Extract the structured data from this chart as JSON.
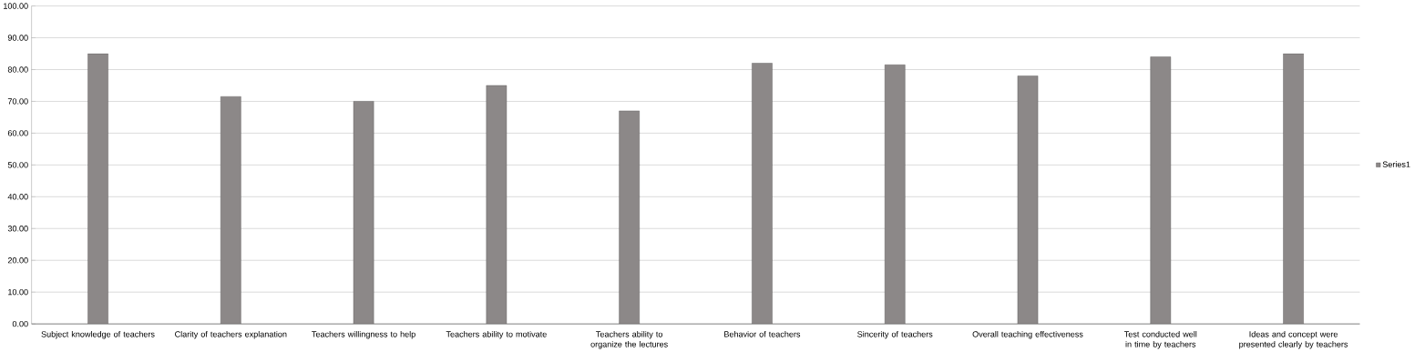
{
  "chart_data": {
    "type": "bar",
    "categories": [
      "Subject knowledge of teachers",
      "Clarity of teachers explanation",
      "Teachers willingness to help",
      "Teachers ability to motivate",
      "Teachers ability to organize the lectures",
      "Behavior of teachers",
      "Sincerity of teachers",
      "Overall teaching effectiveness",
      "Test conducted well in time by teachers",
      "Ideas and concept were presented clearly by teachers"
    ],
    "series": [
      {
        "name": "Series1",
        "color": "#8c8888",
        "values": [
          85,
          71.5,
          70,
          75,
          67,
          82,
          81.5,
          78,
          84,
          85
        ]
      }
    ],
    "ylim": [
      0,
      100
    ],
    "yticks": [
      {
        "value": 0,
        "label": "0.00"
      },
      {
        "value": 10,
        "label": "10.00"
      },
      {
        "value": 20,
        "label": "20.00"
      },
      {
        "value": 30,
        "label": "30.00"
      },
      {
        "value": 40,
        "label": "40.00"
      },
      {
        "value": 50,
        "label": "50.00"
      },
      {
        "value": 60,
        "label": "60.00"
      },
      {
        "value": 70,
        "label": "70.00"
      },
      {
        "value": 80,
        "label": "80.00"
      },
      {
        "value": 90,
        "label": "90.00"
      },
      {
        "value": 100,
        "label": "100.00"
      }
    ],
    "grid": "y",
    "legend": "right"
  }
}
